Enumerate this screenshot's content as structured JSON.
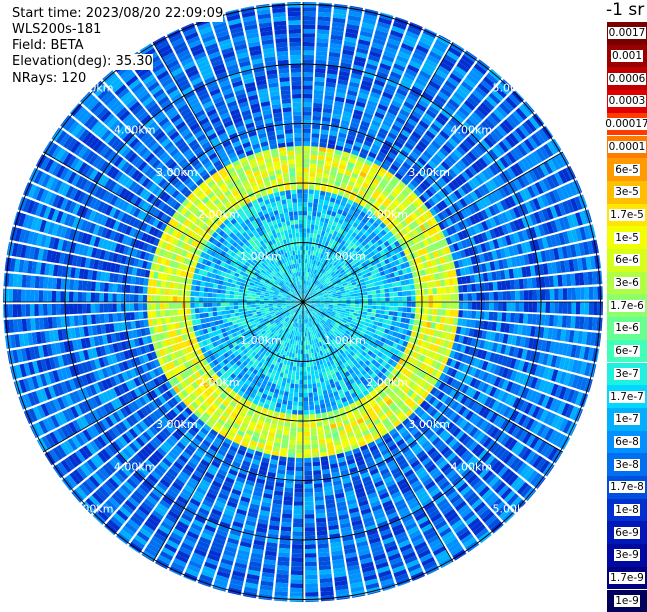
{
  "header": {
    "start_time": "Start time: 2023/08/20 22:09:09",
    "instrument": "WLS200s-181",
    "field": "Field: BETA",
    "elevation": "Elevation(deg): 35.30",
    "nrays": "NRays: 120"
  },
  "colorbar": {
    "unit_label": "-1 sr",
    "ticks": [
      "0.0017",
      "0.001",
      "0.0006",
      "0.0003",
      "0.00017",
      "0.0001",
      "6e-5",
      "3e-5",
      "1.7e-5",
      "1e-5",
      "6e-6",
      "3e-6",
      "1.7e-6",
      "1e-6",
      "6e-7",
      "3e-7",
      "1.7e-7",
      "1e-7",
      "6e-8",
      "3e-8",
      "1.7e-8",
      "1e-8",
      "6e-9",
      "3e-9",
      "1.7e-9",
      "1e-9"
    ],
    "colors": [
      "#7a0000",
      "#990000",
      "#c00000",
      "#e00000",
      "#ff3b00",
      "#ff7a00",
      "#ff9a00",
      "#ffbf00",
      "#ffe600",
      "#f2ff00",
      "#d5ff1a",
      "#b0ff45",
      "#8cff6a",
      "#66ff90",
      "#40ffb8",
      "#20f0e0",
      "#00d8ff",
      "#00b0ff",
      "#0090ff",
      "#0070f0",
      "#0050e0",
      "#0030d0",
      "#0018b8",
      "#000aa0",
      "#000080",
      "#00005a"
    ]
  },
  "range_labels": [
    "1.00km",
    "2.00km",
    "3.00km",
    "4.00km",
    "5.00km"
  ],
  "chart_data": {
    "type": "heatmap",
    "projection": "polar PPI scan",
    "field": "BETA",
    "units": "-1 sr",
    "elevation_deg": 35.3,
    "n_rays": 120,
    "range_rings_km": [
      1,
      2,
      3,
      4,
      5
    ],
    "range_max_km": 5.0,
    "color_scale": "log",
    "value_range": [
      1e-09,
      0.0017
    ],
    "features": [
      {
        "label": "inner calm region",
        "range_km": [
          0,
          1.4
        ],
        "value_approx": 1.7e-07
      },
      {
        "label": "elevated ring",
        "range_km": [
          1.9,
          2.6
        ],
        "value_approx": 1e-05
      },
      {
        "label": "outer background",
        "range_km": [
          3.0,
          5.0
        ],
        "value_approx": 3e-08
      }
    ]
  }
}
